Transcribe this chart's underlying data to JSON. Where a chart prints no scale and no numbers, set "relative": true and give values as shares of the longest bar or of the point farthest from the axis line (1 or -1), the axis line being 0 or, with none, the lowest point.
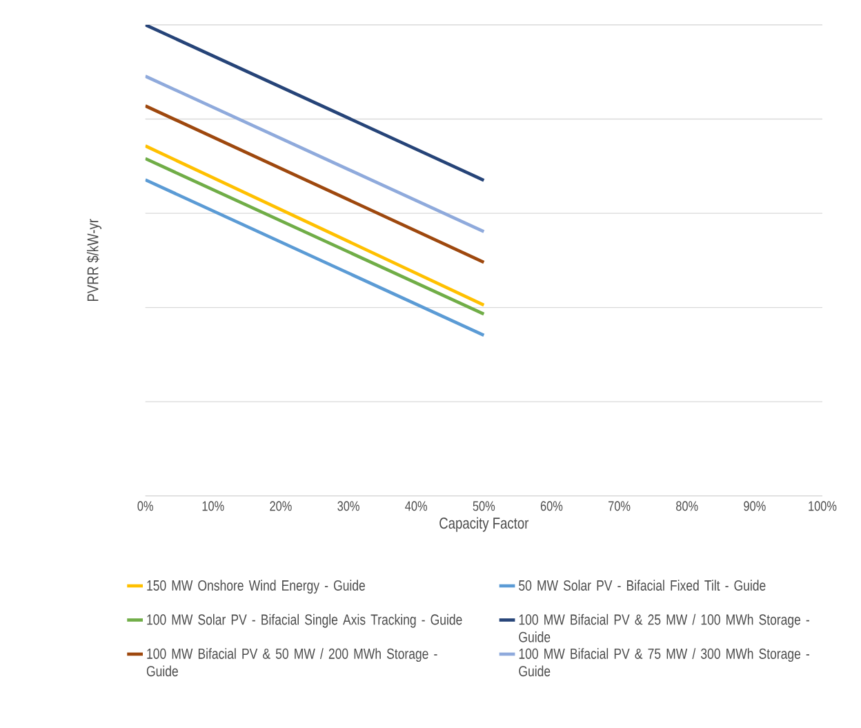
{
  "chart_data": {
    "type": "line",
    "relative": true,
    "xlabel": "Capacity Factor",
    "ylabel": "PVRR $/kW-yr",
    "xlim": [
      0,
      1
    ],
    "xticks": [
      {
        "value": 0,
        "label": "0%"
      },
      {
        "value": 0.1,
        "label": "10%"
      },
      {
        "value": 0.2,
        "label": "20%"
      },
      {
        "value": 0.3,
        "label": "30%"
      },
      {
        "value": 0.4,
        "label": "40%"
      },
      {
        "value": 0.5,
        "label": "50%"
      },
      {
        "value": 0.6,
        "label": "60%"
      },
      {
        "value": 0.7,
        "label": "70%"
      },
      {
        "value": 0.8,
        "label": "80%"
      },
      {
        "value": 0.9,
        "label": "90%"
      },
      {
        "value": 1,
        "label": "100%"
      }
    ],
    "x": [
      0,
      0.5
    ],
    "grid": "y",
    "legend": "bottom",
    "series": [
      {
        "name": "150 MW Onshore Wind Energy - Guide",
        "color": "#ffc000",
        "values": [
          0.743,
          0.405
        ]
      },
      {
        "name": "50 MW Solar PV - Bifacial Fixed Tilt - Guide",
        "color": "#5b9bd5",
        "values": [
          0.671,
          0.341
        ]
      },
      {
        "name": "100 MW Solar PV - Bifacial Single Axis Tracking - Guide",
        "color": "#70ad47",
        "values": [
          0.716,
          0.386
        ]
      },
      {
        "name": "100 MW Bifacial PV & 25 MW / 100 MWh Storage - Guide",
        "color": "#264478",
        "values": [
          1.0,
          0.67
        ]
      },
      {
        "name": "100 MW Bifacial PV & 50 MW / 200 MWh Storage - Guide",
        "color": "#9e480e",
        "values": [
          0.828,
          0.496
        ]
      },
      {
        "name": "100 MW Bifacial PV & 75 MW / 300 MWh Storage - Guide",
        "color": "#8faadc",
        "values": [
          0.891,
          0.561
        ]
      }
    ]
  }
}
